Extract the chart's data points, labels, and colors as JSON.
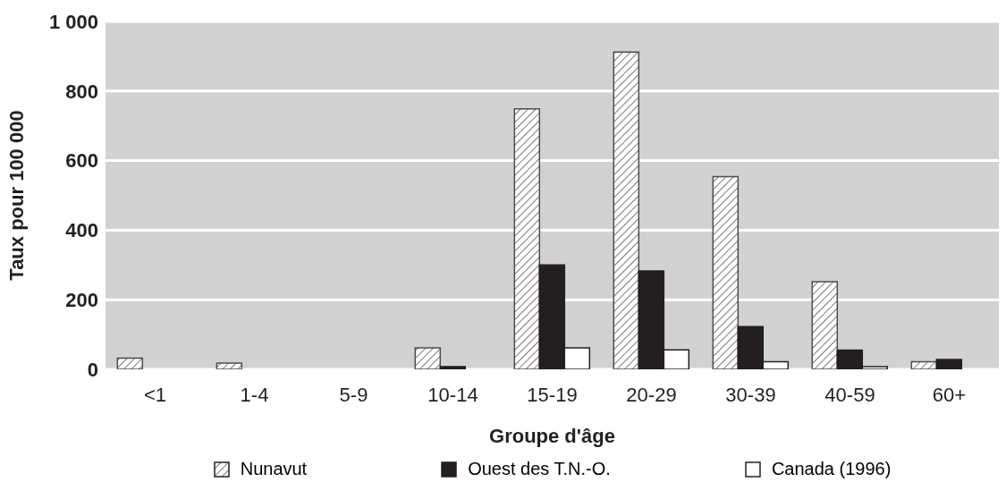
{
  "chart_data": {
    "type": "bar",
    "xlabel": "Groupe d'âge",
    "ylabel": "Taux pour 100 000",
    "categories": [
      "<1",
      "1-4",
      "5-9",
      "10-14",
      "15-19",
      "20-29",
      "30-39",
      "40-59",
      "60+"
    ],
    "series": [
      {
        "name": "Nunavut",
        "color": "#4d4d4d",
        "values": [
          32,
          18,
          0,
          62,
          749,
          912,
          554,
          252,
          22
        ]
      },
      {
        "name": "Ouest des T.N.-O.",
        "color": "#231f20",
        "values": [
          0,
          0,
          0,
          8,
          300,
          283,
          123,
          55,
          28
        ]
      },
      {
        "name": "Canada (1996)",
        "color": "#ffffff",
        "values": [
          0,
          0,
          0,
          0,
          62,
          56,
          22,
          8,
          0
        ]
      }
    ],
    "ylim": [
      0,
      1000
    ],
    "yticks": [
      0,
      200,
      400,
      600,
      800,
      {
        "value": 1000,
        "label": "1 000"
      }
    ],
    "grid": "y",
    "legend": "bottom"
  }
}
